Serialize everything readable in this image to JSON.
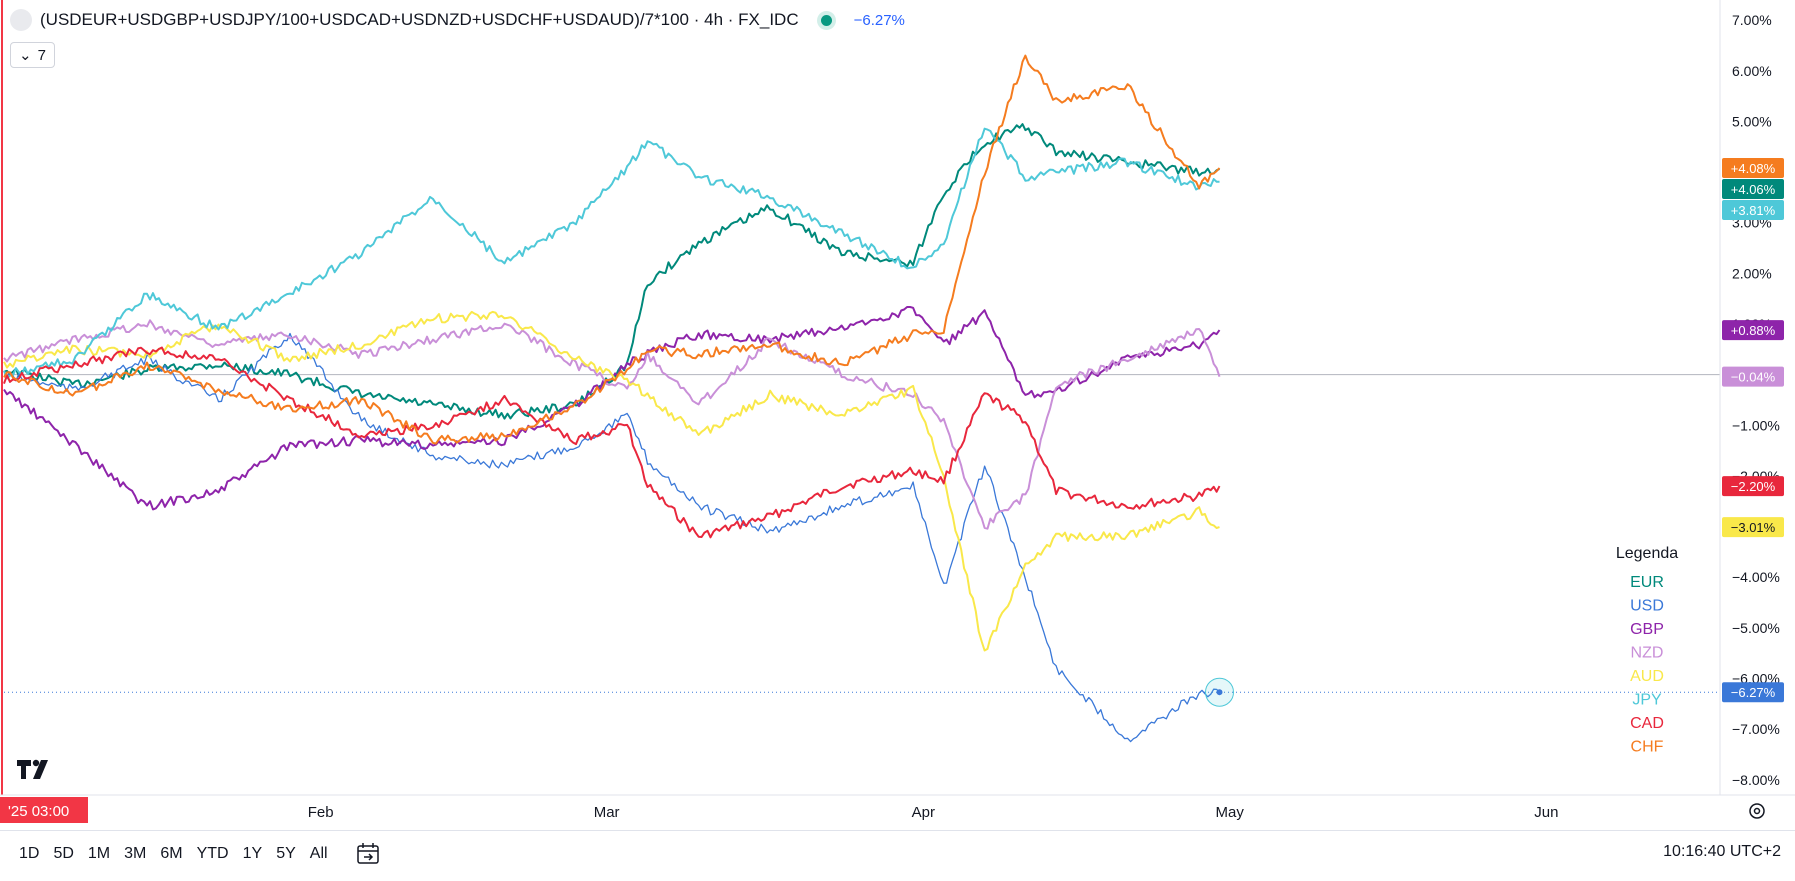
{
  "header": {
    "title": "(USDEUR+USDGBP+USDJPY/100+USDCAD+USDNZD+USDCHF+USDAUD)/7*100 · 4h · FX_IDC",
    "change": "−6.27%",
    "indicator_count": "7"
  },
  "bottom_bar": {
    "ranges": [
      "1D",
      "5D",
      "1M",
      "3M",
      "6M",
      "YTD",
      "1Y",
      "5Y",
      "All"
    ],
    "clock": "10:16:40 UTC+2"
  },
  "crosshair_date_label": "'25  03:00",
  "chart_data": {
    "type": "line",
    "title": "",
    "xlabel": "",
    "ylabel": "",
    "x_range": [
      "2025-01-01",
      "2025-06-18"
    ],
    "ylim": [
      -8.3,
      7.2
    ],
    "y_ticks": [
      "7.00%",
      "6.00%",
      "5.00%",
      "4.00%",
      "3.00%",
      "2.00%",
      "1.00%",
      "−1.00%",
      "−2.00%",
      "−3.00%",
      "−4.00%",
      "−5.00%",
      "−6.00%",
      "−7.00%",
      "−8.00%"
    ],
    "y_tick_values": [
      7,
      6,
      5,
      4,
      3,
      2,
      1,
      -1,
      -2,
      -3,
      -4,
      -5,
      -6,
      -7,
      -8
    ],
    "x_ticks": [
      {
        "label": "Feb",
        "date": "2025-02-01"
      },
      {
        "label": "Mar",
        "date": "2025-03-01"
      },
      {
        "label": "Apr",
        "date": "2025-04-01"
      },
      {
        "label": "May",
        "date": "2025-05-01"
      },
      {
        "label": "Jun",
        "date": "2025-06-01"
      }
    ],
    "legend_title": "Legenda",
    "legend_position": "bottom-right",
    "grid": false,
    "zero_line": true,
    "series": [
      {
        "name": "EUR",
        "color": "#00897b",
        "last_label": "+4.06%",
        "points": [
          [
            "2025-01-01",
            0.1
          ],
          [
            "2025-01-08",
            -0.2
          ],
          [
            "2025-01-15",
            0.1
          ],
          [
            "2025-01-22",
            0.2
          ],
          [
            "2025-01-29",
            0.0
          ],
          [
            "2025-02-05",
            -0.4
          ],
          [
            "2025-02-12",
            -0.6
          ],
          [
            "2025-02-19",
            -0.8
          ],
          [
            "2025-02-26",
            -0.6
          ],
          [
            "2025-03-03",
            0.2
          ],
          [
            "2025-03-05",
            1.8
          ],
          [
            "2025-03-10",
            2.6
          ],
          [
            "2025-03-17",
            3.3
          ],
          [
            "2025-03-24",
            2.4
          ],
          [
            "2025-03-31",
            2.2
          ],
          [
            "2025-04-03",
            3.6
          ],
          [
            "2025-04-07",
            4.6
          ],
          [
            "2025-04-11",
            4.9
          ],
          [
            "2025-04-14",
            4.4
          ],
          [
            "2025-04-21",
            4.2
          ],
          [
            "2025-04-28",
            4.0
          ],
          [
            "2025-04-30",
            4.06
          ]
        ]
      },
      {
        "name": "USD",
        "color": "#3a78d8",
        "last_label": "−6.27%",
        "points": [
          [
            "2025-01-01",
            0.0
          ],
          [
            "2025-01-08",
            -0.3
          ],
          [
            "2025-01-15",
            0.3
          ],
          [
            "2025-01-22",
            -0.5
          ],
          [
            "2025-01-29",
            0.8
          ],
          [
            "2025-02-05",
            -0.9
          ],
          [
            "2025-02-12",
            -1.6
          ],
          [
            "2025-02-19",
            -1.8
          ],
          [
            "2025-02-26",
            -1.4
          ],
          [
            "2025-03-03",
            -0.8
          ],
          [
            "2025-03-05",
            -1.7
          ],
          [
            "2025-03-10",
            -2.6
          ],
          [
            "2025-03-17",
            -3.1
          ],
          [
            "2025-03-24",
            -2.6
          ],
          [
            "2025-03-31",
            -2.2
          ],
          [
            "2025-04-03",
            -4.2
          ],
          [
            "2025-04-07",
            -1.8
          ],
          [
            "2025-04-11",
            -4.0
          ],
          [
            "2025-04-14",
            -5.8
          ],
          [
            "2025-04-21",
            -7.2
          ],
          [
            "2025-04-28",
            -6.3
          ],
          [
            "2025-04-30",
            -6.27
          ]
        ]
      },
      {
        "name": "GBP",
        "color": "#8e24aa",
        "last_label": "+0.88%",
        "points": [
          [
            "2025-01-01",
            -0.3
          ],
          [
            "2025-01-08",
            -1.4
          ],
          [
            "2025-01-15",
            -2.6
          ],
          [
            "2025-01-22",
            -2.3
          ],
          [
            "2025-01-29",
            -1.4
          ],
          [
            "2025-02-05",
            -1.3
          ],
          [
            "2025-02-12",
            -1.4
          ],
          [
            "2025-02-19",
            -1.3
          ],
          [
            "2025-02-26",
            -0.6
          ],
          [
            "2025-03-03",
            0.2
          ],
          [
            "2025-03-05",
            0.4
          ],
          [
            "2025-03-10",
            0.8
          ],
          [
            "2025-03-17",
            0.7
          ],
          [
            "2025-03-24",
            0.9
          ],
          [
            "2025-03-31",
            1.3
          ],
          [
            "2025-04-03",
            0.6
          ],
          [
            "2025-04-07",
            1.2
          ],
          [
            "2025-04-11",
            -0.4
          ],
          [
            "2025-04-14",
            -0.3
          ],
          [
            "2025-04-21",
            0.3
          ],
          [
            "2025-04-28",
            0.6
          ],
          [
            "2025-04-30",
            0.88
          ]
        ]
      },
      {
        "name": "NZD",
        "color": "#c98fd8",
        "last_label": "−0.04%",
        "points": [
          [
            "2025-01-01",
            0.3
          ],
          [
            "2025-01-08",
            0.7
          ],
          [
            "2025-01-15",
            1.0
          ],
          [
            "2025-01-22",
            0.6
          ],
          [
            "2025-01-29",
            0.8
          ],
          [
            "2025-02-05",
            0.4
          ],
          [
            "2025-02-12",
            0.7
          ],
          [
            "2025-02-19",
            1.0
          ],
          [
            "2025-02-26",
            0.2
          ],
          [
            "2025-03-03",
            -0.3
          ],
          [
            "2025-03-05",
            0.4
          ],
          [
            "2025-03-10",
            -0.6
          ],
          [
            "2025-03-17",
            0.7
          ],
          [
            "2025-03-24",
            0.0
          ],
          [
            "2025-03-31",
            -0.4
          ],
          [
            "2025-04-03",
            -0.9
          ],
          [
            "2025-04-07",
            -3.0
          ],
          [
            "2025-04-11",
            -2.4
          ],
          [
            "2025-04-14",
            -0.2
          ],
          [
            "2025-04-21",
            0.3
          ],
          [
            "2025-04-28",
            0.9
          ],
          [
            "2025-04-30",
            -0.04
          ]
        ]
      },
      {
        "name": "AUD",
        "color": "#f9e84a",
        "last_label": "−3.01%",
        "points": [
          [
            "2025-01-01",
            0.2
          ],
          [
            "2025-01-08",
            0.5
          ],
          [
            "2025-01-15",
            0.4
          ],
          [
            "2025-01-22",
            1.0
          ],
          [
            "2025-01-29",
            0.3
          ],
          [
            "2025-02-05",
            0.6
          ],
          [
            "2025-02-12",
            1.1
          ],
          [
            "2025-02-19",
            1.2
          ],
          [
            "2025-02-26",
            0.3
          ],
          [
            "2025-03-03",
            -0.1
          ],
          [
            "2025-03-05",
            -0.4
          ],
          [
            "2025-03-10",
            -1.2
          ],
          [
            "2025-03-17",
            -0.4
          ],
          [
            "2025-03-24",
            -0.8
          ],
          [
            "2025-03-31",
            -0.3
          ],
          [
            "2025-04-03",
            -2.0
          ],
          [
            "2025-04-07",
            -5.5
          ],
          [
            "2025-04-11",
            -3.8
          ],
          [
            "2025-04-14",
            -3.2
          ],
          [
            "2025-04-21",
            -3.2
          ],
          [
            "2025-04-28",
            -2.7
          ],
          [
            "2025-04-30",
            -3.01
          ]
        ]
      },
      {
        "name": "JPY",
        "color": "#4ec8d8",
        "last_label": "+3.81%",
        "points": [
          [
            "2025-01-01",
            0.0
          ],
          [
            "2025-01-08",
            0.3
          ],
          [
            "2025-01-15",
            1.6
          ],
          [
            "2025-01-22",
            0.9
          ],
          [
            "2025-01-29",
            1.6
          ],
          [
            "2025-02-05",
            2.4
          ],
          [
            "2025-02-12",
            3.5
          ],
          [
            "2025-02-19",
            2.2
          ],
          [
            "2025-02-26",
            3.0
          ],
          [
            "2025-03-03",
            4.1
          ],
          [
            "2025-03-05",
            4.6
          ],
          [
            "2025-03-10",
            3.9
          ],
          [
            "2025-03-17",
            3.5
          ],
          [
            "2025-03-24",
            2.8
          ],
          [
            "2025-03-31",
            2.1
          ],
          [
            "2025-04-03",
            2.6
          ],
          [
            "2025-04-07",
            4.9
          ],
          [
            "2025-04-11",
            3.9
          ],
          [
            "2025-04-14",
            4.0
          ],
          [
            "2025-04-21",
            4.2
          ],
          [
            "2025-04-28",
            3.7
          ],
          [
            "2025-04-30",
            3.81
          ]
        ]
      },
      {
        "name": "CAD",
        "color": "#e8273c",
        "last_label": "−2.20%",
        "points": [
          [
            "2025-01-01",
            -0.1
          ],
          [
            "2025-01-08",
            0.2
          ],
          [
            "2025-01-15",
            0.5
          ],
          [
            "2025-01-22",
            0.3
          ],
          [
            "2025-01-29",
            -0.5
          ],
          [
            "2025-02-05",
            -1.2
          ],
          [
            "2025-02-12",
            -1.0
          ],
          [
            "2025-02-19",
            -0.5
          ],
          [
            "2025-02-26",
            -1.3
          ],
          [
            "2025-03-03",
            -1.0
          ],
          [
            "2025-03-05",
            -2.2
          ],
          [
            "2025-03-10",
            -3.2
          ],
          [
            "2025-03-17",
            -2.8
          ],
          [
            "2025-03-24",
            -2.2
          ],
          [
            "2025-03-31",
            -1.9
          ],
          [
            "2025-04-03",
            -2.1
          ],
          [
            "2025-04-07",
            -0.4
          ],
          [
            "2025-04-11",
            -0.9
          ],
          [
            "2025-04-14",
            -2.3
          ],
          [
            "2025-04-21",
            -2.6
          ],
          [
            "2025-04-28",
            -2.4
          ],
          [
            "2025-04-30",
            -2.2
          ]
        ]
      },
      {
        "name": "CHF",
        "color": "#f57c1f",
        "last_label": "+4.08%",
        "points": [
          [
            "2025-01-01",
            0.0
          ],
          [
            "2025-01-08",
            -0.4
          ],
          [
            "2025-01-15",
            0.2
          ],
          [
            "2025-01-22",
            -0.3
          ],
          [
            "2025-01-29",
            -0.7
          ],
          [
            "2025-02-05",
            -0.5
          ],
          [
            "2025-02-12",
            -1.3
          ],
          [
            "2025-02-19",
            -1.2
          ],
          [
            "2025-02-26",
            -0.6
          ],
          [
            "2025-03-03",
            0.1
          ],
          [
            "2025-03-05",
            0.5
          ],
          [
            "2025-03-10",
            0.4
          ],
          [
            "2025-03-17",
            0.6
          ],
          [
            "2025-03-24",
            0.2
          ],
          [
            "2025-03-31",
            0.8
          ],
          [
            "2025-04-03",
            0.9
          ],
          [
            "2025-04-07",
            4.0
          ],
          [
            "2025-04-11",
            6.3
          ],
          [
            "2025-04-14",
            5.4
          ],
          [
            "2025-04-21",
            5.7
          ],
          [
            "2025-04-28",
            3.7
          ],
          [
            "2025-04-30",
            4.08
          ]
        ]
      }
    ]
  }
}
